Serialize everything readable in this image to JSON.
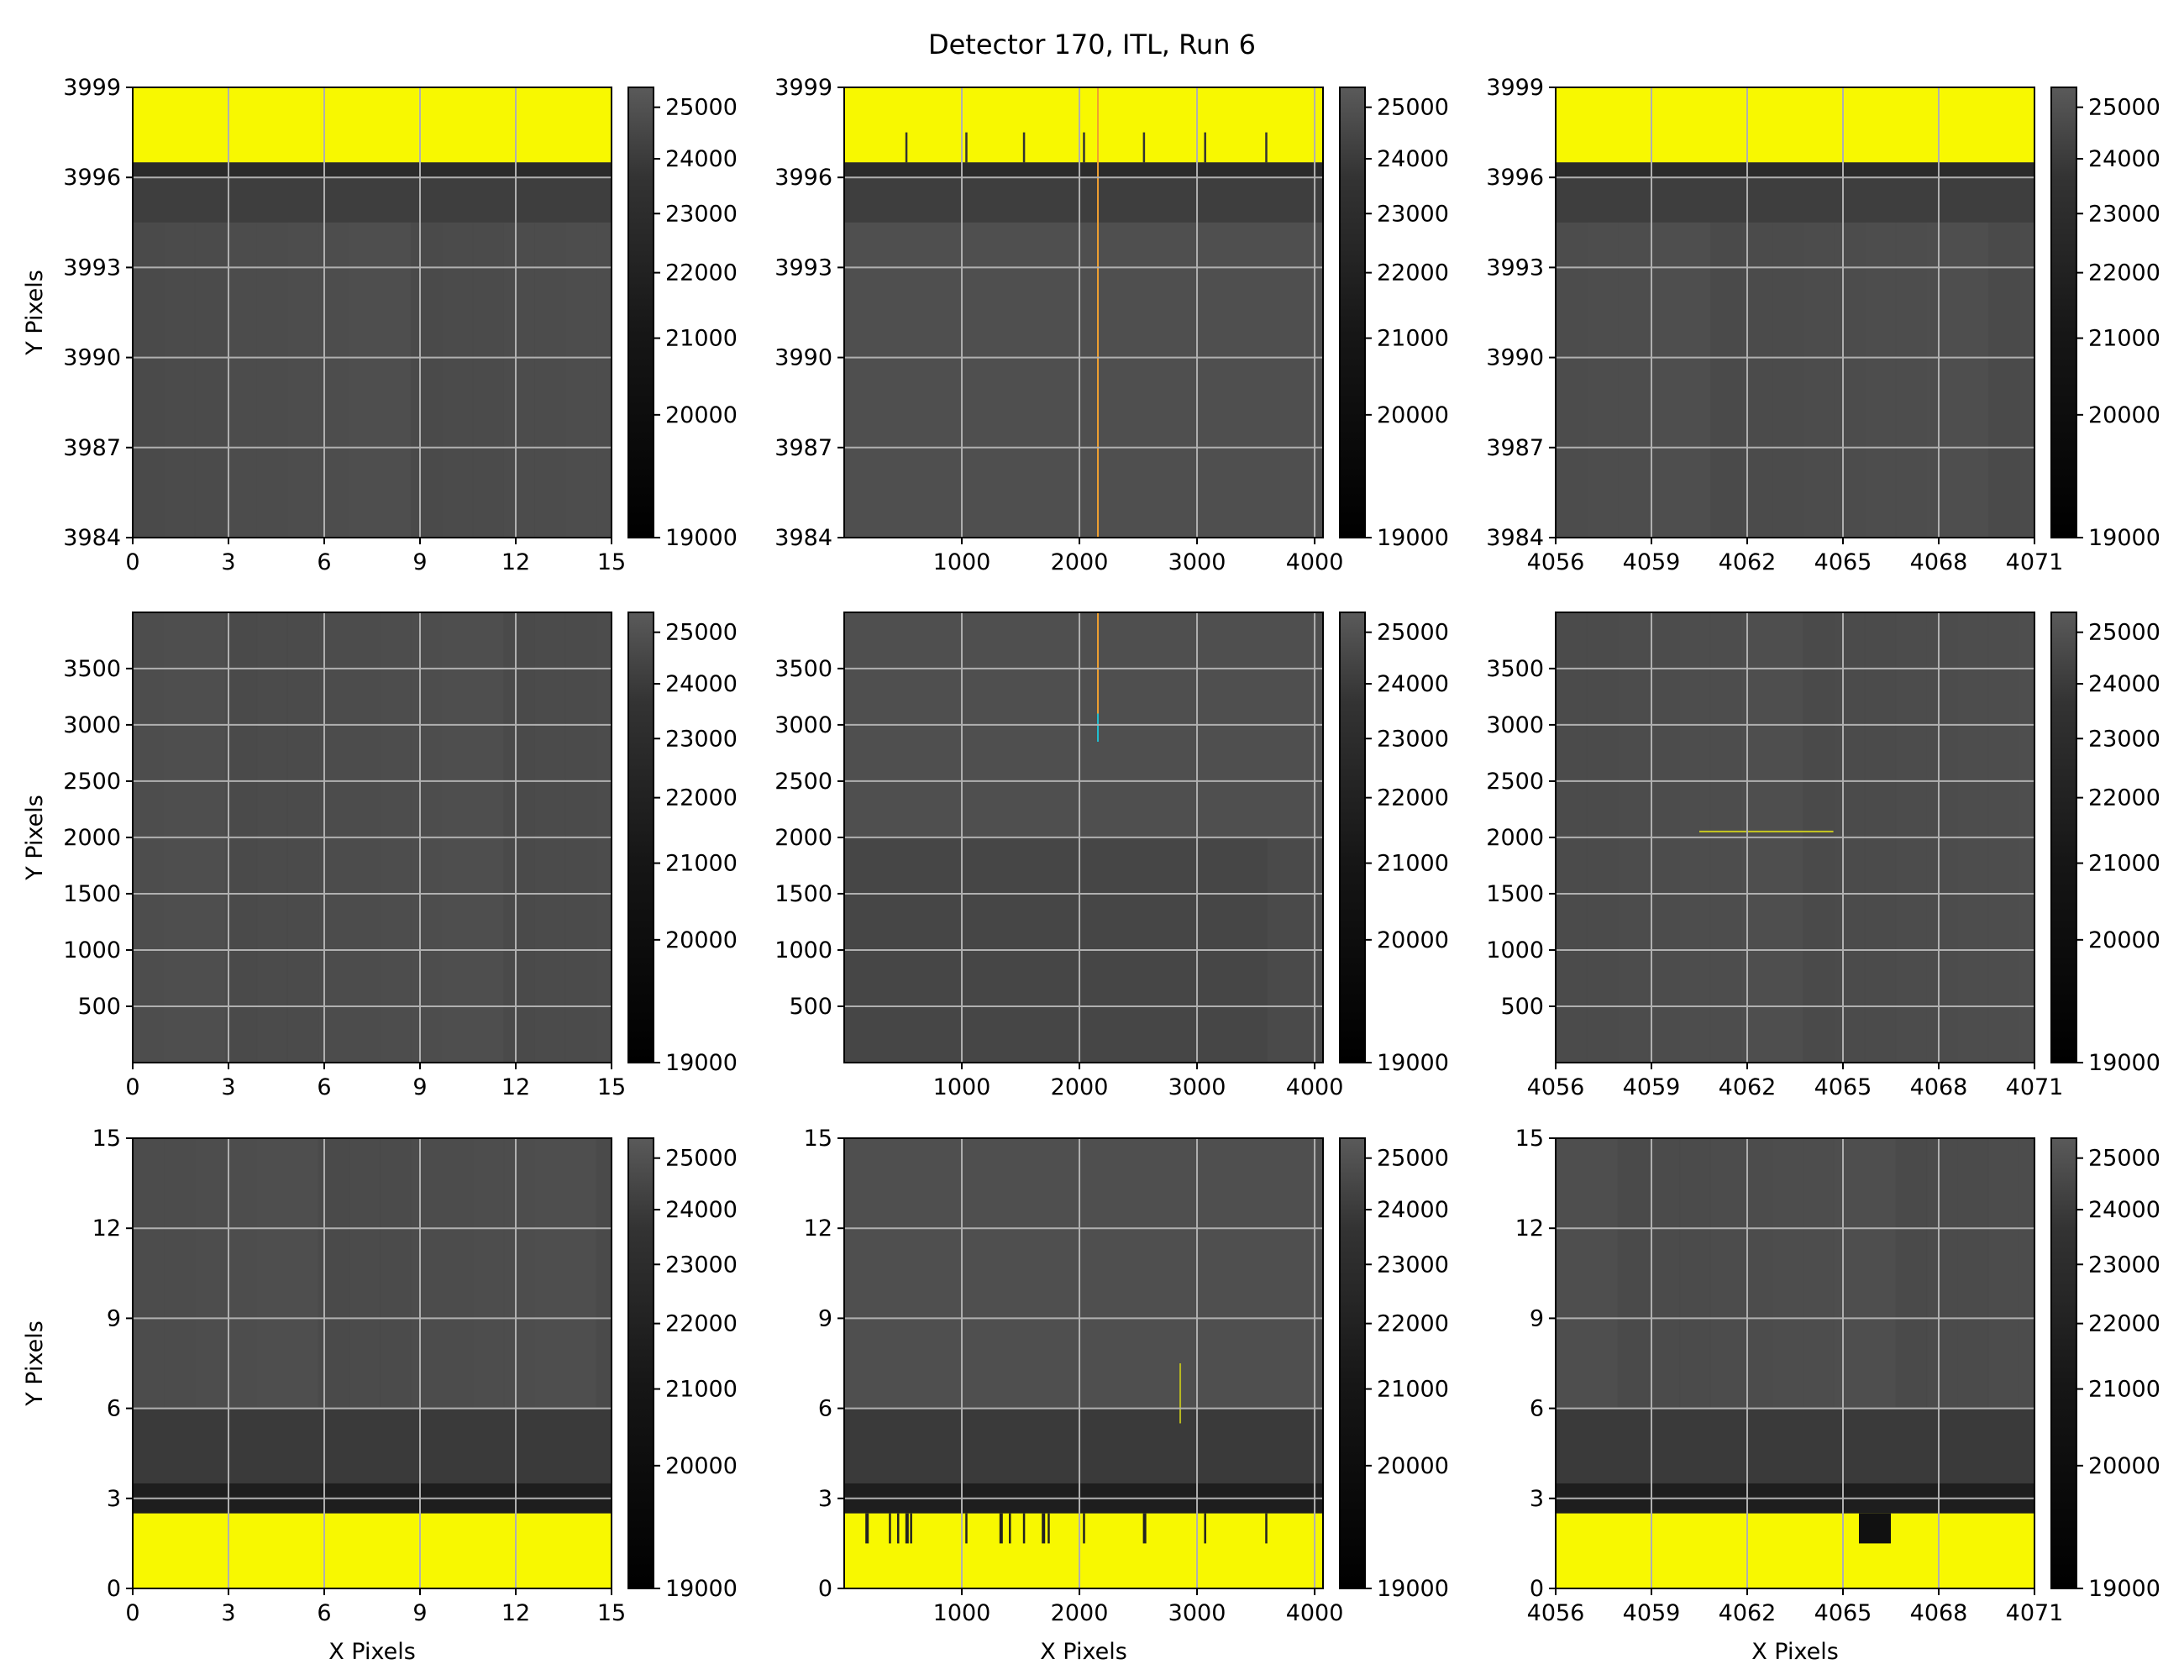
{
  "figure": {
    "title": "Detector 170, ITL, Run 6",
    "xlabel": "X Pixels",
    "ylabel": "Y Pixels"
  },
  "colors": {
    "image_gray": "#4f4f4f",
    "dark_band": "#2b2b2b",
    "darker_band": "#1e1e1e",
    "masked_yellow": "#f8f800",
    "grid": "#b0b0b0",
    "orange_line": "#f0a030",
    "cyan_line": "#20c0d0"
  },
  "chart_data": [
    {
      "type": "heatmap",
      "row": 0,
      "col": 0,
      "x_ticks": [
        "0",
        "3",
        "6",
        "9",
        "12",
        "15"
      ],
      "y_ticks": [
        "3984",
        "3987",
        "3990",
        "3993",
        "3996",
        "3999"
      ],
      "xlim": [
        0,
        15
      ],
      "ylim": [
        3984,
        3999
      ],
      "colorbar_ticks": [
        "19000",
        "20000",
        "21000",
        "22000",
        "23000",
        "24000",
        "25000"
      ],
      "colorbar_range": [
        19000,
        25400
      ],
      "masked_region": "top rows above 3996.5 (yellow)"
    },
    {
      "type": "heatmap",
      "row": 0,
      "col": 1,
      "x_ticks": [
        "1000",
        "2000",
        "3000",
        "4000"
      ],
      "y_ticks": [
        "3984",
        "3987",
        "3990",
        "3993",
        "3996",
        "3999"
      ],
      "xlim": [
        0,
        4071
      ],
      "ylim": [
        3984,
        3999
      ],
      "colorbar_ticks": [
        "19000",
        "20000",
        "21000",
        "22000",
        "23000",
        "24000",
        "25000"
      ],
      "colorbar_range": [
        19000,
        25400
      ],
      "masked_region": "top rows above 3996.5 (yellow)"
    },
    {
      "type": "heatmap",
      "row": 0,
      "col": 2,
      "x_ticks": [
        "4056",
        "4059",
        "4062",
        "4065",
        "4068",
        "4071"
      ],
      "y_ticks": [
        "3984",
        "3987",
        "3990",
        "3993",
        "3996",
        "3999"
      ],
      "xlim": [
        4056,
        4071
      ],
      "ylim": [
        3984,
        3999
      ],
      "colorbar_ticks": [
        "19000",
        "20000",
        "21000",
        "22000",
        "23000",
        "24000",
        "25000"
      ],
      "colorbar_range": [
        19000,
        25400
      ],
      "masked_region": "top rows above 3996.5 (yellow)"
    },
    {
      "type": "heatmap",
      "row": 1,
      "col": 0,
      "x_ticks": [
        "0",
        "3",
        "6",
        "9",
        "12",
        "15"
      ],
      "y_ticks": [
        "500",
        "1000",
        "1500",
        "2000",
        "2500",
        "3000",
        "3500"
      ],
      "xlim": [
        0,
        15
      ],
      "ylim": [
        0,
        3999
      ],
      "colorbar_ticks": [
        "19000",
        "20000",
        "21000",
        "22000",
        "23000",
        "24000",
        "25000"
      ],
      "colorbar_range": [
        19000,
        25400
      ]
    },
    {
      "type": "heatmap",
      "row": 1,
      "col": 1,
      "x_ticks": [
        "1000",
        "2000",
        "3000",
        "4000"
      ],
      "y_ticks": [
        "500",
        "1000",
        "1500",
        "2000",
        "2500",
        "3000",
        "3500"
      ],
      "xlim": [
        0,
        4071
      ],
      "ylim": [
        0,
        3999
      ],
      "colorbar_ticks": [
        "19000",
        "20000",
        "21000",
        "22000",
        "23000",
        "24000",
        "25000"
      ],
      "colorbar_range": [
        19000,
        25400
      ]
    },
    {
      "type": "heatmap",
      "row": 1,
      "col": 2,
      "x_ticks": [
        "4056",
        "4059",
        "4062",
        "4065",
        "4068",
        "4071"
      ],
      "y_ticks": [
        "500",
        "1000",
        "1500",
        "2000",
        "2500",
        "3000",
        "3500"
      ],
      "xlim": [
        4056,
        4071
      ],
      "ylim": [
        0,
        3999
      ],
      "colorbar_ticks": [
        "19000",
        "20000",
        "21000",
        "22000",
        "23000",
        "24000",
        "25000"
      ],
      "colorbar_range": [
        19000,
        25400
      ]
    },
    {
      "type": "heatmap",
      "row": 2,
      "col": 0,
      "x_ticks": [
        "0",
        "3",
        "6",
        "9",
        "12",
        "15"
      ],
      "y_ticks": [
        "0",
        "3",
        "6",
        "9",
        "12",
        "15"
      ],
      "xlim": [
        0,
        15
      ],
      "ylim": [
        0,
        15
      ],
      "colorbar_ticks": [
        "19000",
        "20000",
        "21000",
        "22000",
        "23000",
        "24000",
        "25000"
      ],
      "colorbar_range": [
        19000,
        25400
      ],
      "masked_region": "bottom rows below 2.5 (yellow)"
    },
    {
      "type": "heatmap",
      "row": 2,
      "col": 1,
      "x_ticks": [
        "1000",
        "2000",
        "3000",
        "4000"
      ],
      "y_ticks": [
        "0",
        "3",
        "6",
        "9",
        "12",
        "15"
      ],
      "xlim": [
        0,
        4071
      ],
      "ylim": [
        0,
        15
      ],
      "colorbar_ticks": [
        "19000",
        "20000",
        "21000",
        "22000",
        "23000",
        "24000",
        "25000"
      ],
      "colorbar_range": [
        19000,
        25400
      ],
      "masked_region": "bottom rows below 2.5 (yellow)"
    },
    {
      "type": "heatmap",
      "row": 2,
      "col": 2,
      "x_ticks": [
        "4056",
        "4059",
        "4062",
        "4065",
        "4068",
        "4071"
      ],
      "y_ticks": [
        "0",
        "3",
        "6",
        "9",
        "12",
        "15"
      ],
      "xlim": [
        4056,
        4071
      ],
      "ylim": [
        0,
        15
      ],
      "colorbar_ticks": [
        "19000",
        "20000",
        "21000",
        "22000",
        "23000",
        "24000",
        "25000"
      ],
      "colorbar_range": [
        19000,
        25400
      ],
      "masked_region": "bottom rows below 2.5 (yellow)"
    }
  ]
}
